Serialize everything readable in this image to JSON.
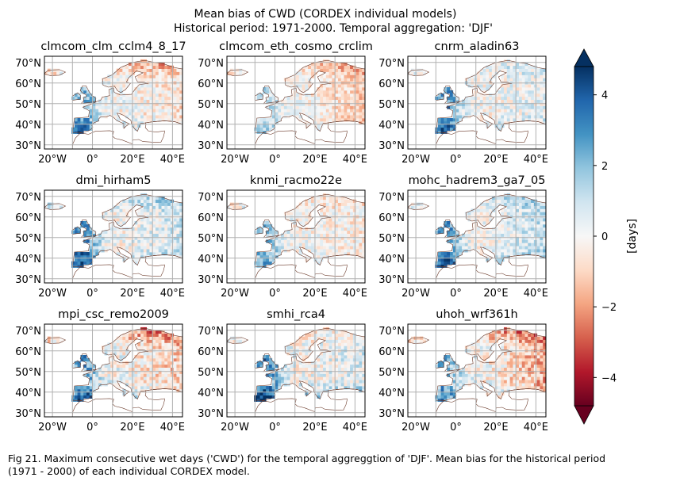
{
  "chart_data": {
    "type": "heatmap",
    "title_line1": "Mean bias of CWD (CORDEX individual models)",
    "title_line2": "Historical period: 1971-2000. Temporal aggregation: 'DJF'",
    "panels": [
      {
        "name": "clmcom_clm_cclm4_8_17"
      },
      {
        "name": "clmcom_eth_cosmo_crclim"
      },
      {
        "name": "cnrm_aladin63"
      },
      {
        "name": "dmi_hirham5"
      },
      {
        "name": "knmi_racmo22e"
      },
      {
        "name": "mohc_hadrem3_ga7_05"
      },
      {
        "name": "mpi_csc_remo2009"
      },
      {
        "name": "smhi_rca4"
      },
      {
        "name": "uhoh_wrf361h"
      }
    ],
    "lat_ticks": [
      30,
      40,
      50,
      60,
      70
    ],
    "lat_tick_labels": [
      "30°N",
      "40°N",
      "50°N",
      "60°N",
      "70°N"
    ],
    "lon_ticks": [
      -20,
      0,
      20,
      40
    ],
    "lon_tick_labels": [
      "20°W",
      "0°",
      "20°E",
      "40°E"
    ],
    "lon_range": [
      -24,
      45
    ],
    "lat_range": [
      28,
      73
    ],
    "grid": true,
    "colorbar": {
      "label": "[days]",
      "range": [
        -4.8,
        4.8
      ],
      "ticks": [
        -4,
        -2,
        0,
        2,
        4
      ],
      "tick_labels": [
        "−4",
        "−2",
        "0",
        "2",
        "4"
      ],
      "extend": "both",
      "colormap": "RdBu"
    }
  },
  "caption": "Fig 21. Maximum consecutive wet days ('CWD') for the temporal aggregation of 'DJF'. Mean bias for the historical period (1971 - 2000) of each individual CORDEX model.",
  "caption_line1": "Fig 21. Maximum consecutive wet days ('CWD') for the temporal aggreggtion of 'DJF'. Mean bias for the historical period",
  "caption_line2": "(1971 - 2000) of each individual CORDEX model.",
  "colors": {
    "colormap_stops": [
      "#67001f",
      "#b2182b",
      "#d6604d",
      "#f4a582",
      "#fddbc7",
      "#f7f7f7",
      "#d1e5f0",
      "#92c5de",
      "#4393c3",
      "#2166ac",
      "#053061"
    ],
    "grid": "#b0b0b0",
    "coast": "#6b3a2a",
    "axis": "#000000"
  }
}
